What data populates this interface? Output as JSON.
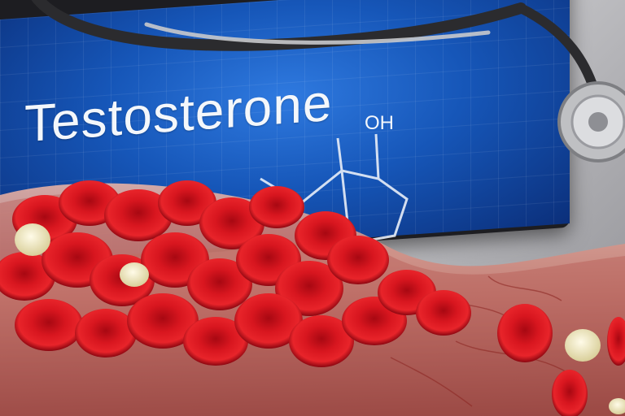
{
  "screen": {
    "title": "Testosterone",
    "formula_label": "OH"
  },
  "colors": {
    "screen_blue": "#1656b8",
    "blood_red": "#c8101c",
    "vessel_pink": "#d9928a"
  },
  "icons": [
    "stethoscope-icon",
    "molecule-icon"
  ]
}
